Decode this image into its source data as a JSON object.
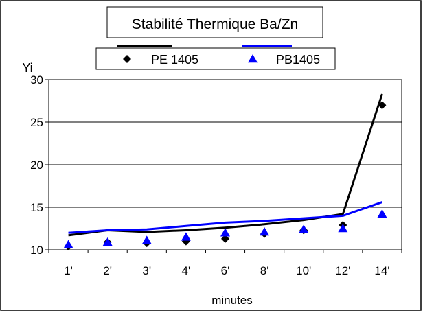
{
  "chart_data": {
    "type": "line",
    "title": "Stabilité Thermique Ba/Zn",
    "ylabel": "Yi",
    "xlabel": "minutes",
    "categories": [
      "1'",
      "2'",
      "3'",
      "4'",
      "6'",
      "8'",
      "10'",
      "12'",
      "14'"
    ],
    "ylim": [
      10,
      30
    ],
    "yticks": [
      10,
      15,
      20,
      25,
      30
    ],
    "grid": "horizontal",
    "legend_position": "top",
    "series": [
      {
        "name": "PE 1405",
        "marker": "diamond",
        "color": "#000000",
        "points": [
          10.4,
          10.9,
          10.8,
          11.0,
          11.3,
          11.9,
          12.3,
          12.9,
          27.0
        ],
        "trend": [
          11.7,
          12.3,
          12.1,
          12.3,
          12.6,
          13.0,
          13.5,
          14.2,
          28.3
        ]
      },
      {
        "name": "PB1405",
        "marker": "triangle",
        "color": "#0000ff",
        "points": [
          10.6,
          10.9,
          11.1,
          11.5,
          12.0,
          12.1,
          12.4,
          12.5,
          14.2
        ],
        "trend": [
          12.0,
          12.3,
          12.4,
          12.8,
          13.2,
          13.4,
          13.7,
          14.0,
          15.6
        ]
      }
    ]
  }
}
